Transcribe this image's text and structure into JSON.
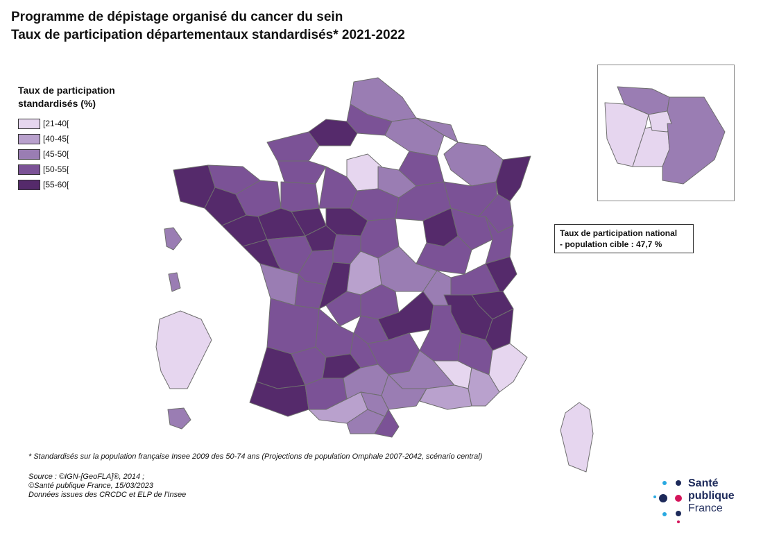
{
  "title": {
    "line1": "Programme de dépistage organisé du cancer du sein",
    "line2": "Taux de participation départementaux standardisés* 2021-2022"
  },
  "legend": {
    "title": "Taux de participation standardisés (%)",
    "classes": [
      {
        "label": "[21-40[",
        "color": "#e6d6ef"
      },
      {
        "label": "[40-45[",
        "color": "#b9a1cd"
      },
      {
        "label": "[45-50[",
        "color": "#9a7db3"
      },
      {
        "label": "[50-55[",
        "color": "#7b5296"
      },
      {
        "label": "[55-60[",
        "color": "#552a6b"
      }
    ]
  },
  "national_rate": {
    "line1": "Taux de participation national",
    "line2": "- population cible : 47,7 %"
  },
  "footnote": "* Standardisés sur la population française Insee 2009 des 50-74 ans (Projections de population Omphale 2007-2042, scénario central)",
  "source": {
    "line1": "Source : ©IGN-[GeoFLA]®, 2014 ;",
    "line2": "©Santé publique France, 15/03/2023",
    "line3": "Données issues des CRCDC et ELP de l'Insee"
  },
  "logo": {
    "line1": "Santé",
    "line2": "publique",
    "line3": "France",
    "colors": {
      "navy": "#1d2a5a",
      "magenta": "#d4145a",
      "cyan": "#29a9e1"
    }
  },
  "map_regions": {
    "class_colors": [
      "#e6d6ef",
      "#b9a1cd",
      "#9a7db3",
      "#7b5296",
      "#552a6b"
    ],
    "border_color": "#6e6e6e"
  }
}
